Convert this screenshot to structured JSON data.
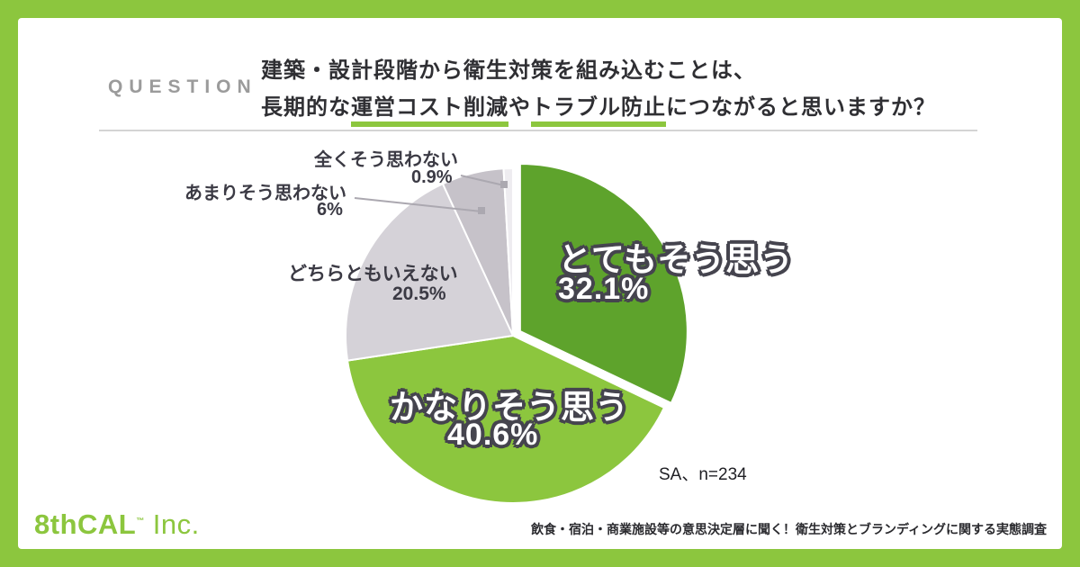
{
  "frame": {
    "border_color": "#8CC63E",
    "background": "#ffffff"
  },
  "header": {
    "question_label": "QUESTION",
    "question_line1": "建築・設計段階から衛生対策を組み込むことは、",
    "question_line2_pre": "長期的な",
    "question_line2_hl1": "運営コスト削減",
    "question_line2_mid": "や",
    "question_line2_hl2": "トラブル防止",
    "question_line2_post": "につながると思いますか？"
  },
  "chart_data": {
    "type": "pie",
    "title": "建築・設計段階から衛生対策を組み込むことは、長期的な運営コスト削減やトラブル防止につながると思いますか？",
    "labels": [
      "とてもそう思う",
      "かなりそう思う",
      "どちらともいえない",
      "あまりそう思わない",
      "全くそう思わない"
    ],
    "values": [
      32.1,
      40.6,
      20.5,
      6,
      0.9
    ],
    "value_labels": [
      "32.1%",
      "40.6%",
      "20.5%",
      "6%",
      "0.9%"
    ],
    "colors": [
      "#5EA32C",
      "#8CC63E",
      "#D5D2D8",
      "#C6C2C9",
      "#EEECF0"
    ],
    "start_angle_deg": -90,
    "direction": "clockwise",
    "explode": [
      0.05,
      0,
      0,
      0,
      0
    ],
    "legend_position": "none",
    "note": "SA、n=234"
  },
  "footer": {
    "logo_text": "8thCAL",
    "logo_tm": "™",
    "logo_suffix": "Inc.",
    "source_text": "飲食・宿泊・商業施設等の意思決定層に聞く！衛生対策とブランディングに関する実態調査"
  }
}
